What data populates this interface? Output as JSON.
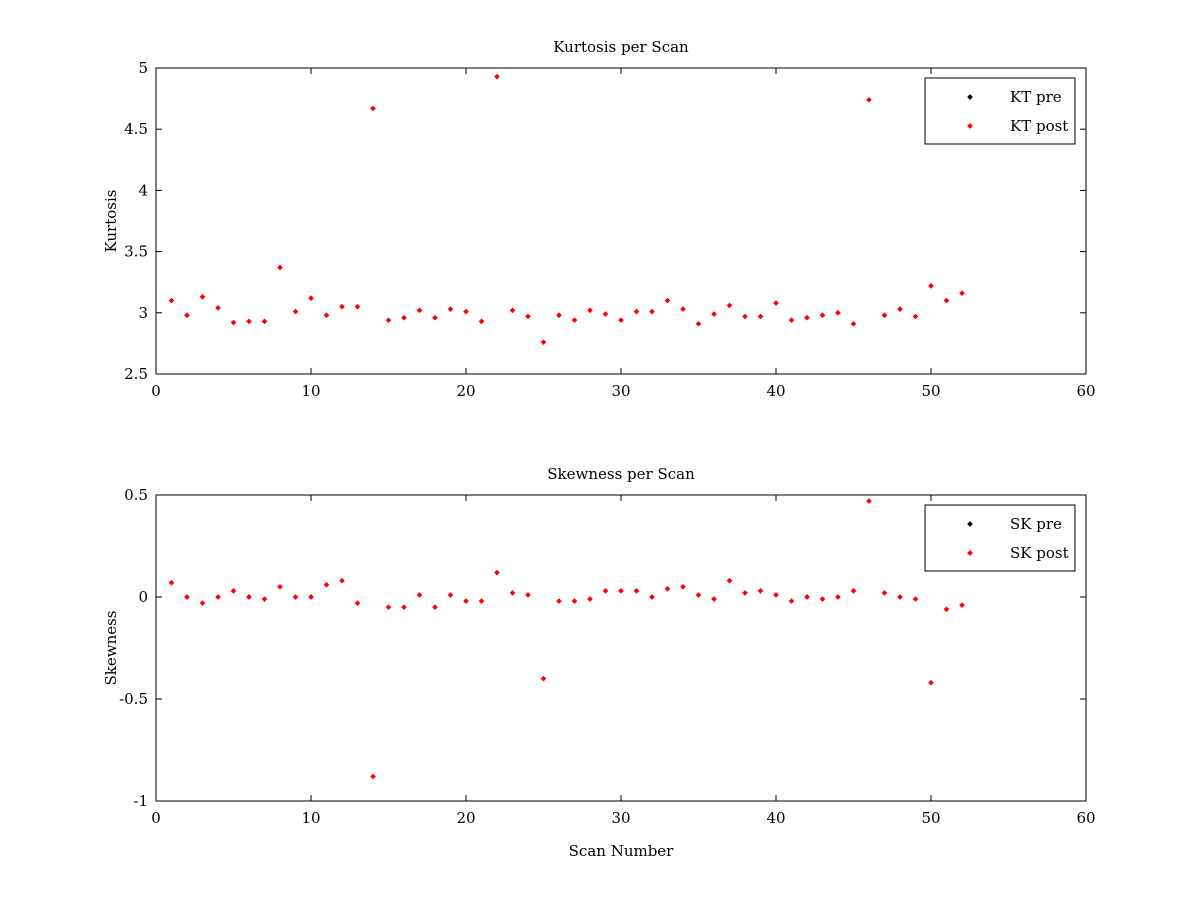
{
  "chart_data": [
    {
      "type": "scatter",
      "title": "Kurtosis per Scan",
      "xlabel": "",
      "ylabel": "Kurtosis",
      "xlim": [
        0,
        60
      ],
      "ylim": [
        2.5,
        5
      ],
      "xticks": [
        "0",
        "10",
        "20",
        "30",
        "40",
        "50",
        "60"
      ],
      "yticks": [
        "2.5",
        "3",
        "3.5",
        "4",
        "4.5",
        "5"
      ],
      "legend_position": "top-right",
      "grid": false,
      "series": [
        {
          "name": "KT pre",
          "color": "#000000",
          "x": [],
          "y": []
        },
        {
          "name": "KT post",
          "color": "#ff0000",
          "x": [
            1,
            2,
            3,
            4,
            5,
            6,
            7,
            8,
            9,
            10,
            11,
            12,
            13,
            14,
            15,
            16,
            17,
            18,
            19,
            20,
            21,
            22,
            23,
            24,
            25,
            26,
            27,
            28,
            29,
            30,
            31,
            32,
            33,
            34,
            35,
            36,
            37,
            38,
            39,
            40,
            41,
            42,
            43,
            44,
            45,
            46,
            47,
            48,
            49,
            50,
            51,
            52
          ],
          "y": [
            3.1,
            2.98,
            3.13,
            3.04,
            2.92,
            2.93,
            2.93,
            3.37,
            3.01,
            3.12,
            2.98,
            3.05,
            3.05,
            4.67,
            2.94,
            2.96,
            3.02,
            2.96,
            3.03,
            3.01,
            2.93,
            4.93,
            3.02,
            2.97,
            2.76,
            2.98,
            2.94,
            3.02,
            2.99,
            2.94,
            3.01,
            3.01,
            3.1,
            3.03,
            2.91,
            2.99,
            3.06,
            2.97,
            2.97,
            3.08,
            2.94,
            2.96,
            2.98,
            3.0,
            2.91,
            4.74,
            2.98,
            3.03,
            2.97,
            3.22,
            3.1,
            3.16
          ]
        }
      ]
    },
    {
      "type": "scatter",
      "title": "Skewness per Scan",
      "xlabel": "Scan Number",
      "ylabel": "Skewness",
      "xlim": [
        0,
        60
      ],
      "ylim": [
        -1,
        0.5
      ],
      "xticks": [
        "0",
        "10",
        "20",
        "30",
        "40",
        "50",
        "60"
      ],
      "yticks": [
        "-1",
        "-0.5",
        "0",
        "0.5"
      ],
      "legend_position": "top-right",
      "grid": false,
      "series": [
        {
          "name": "SK pre",
          "color": "#000000",
          "x": [],
          "y": []
        },
        {
          "name": "SK post",
          "color": "#ff0000",
          "x": [
            1,
            2,
            3,
            4,
            5,
            6,
            7,
            8,
            9,
            10,
            11,
            12,
            13,
            14,
            15,
            16,
            17,
            18,
            19,
            20,
            21,
            22,
            23,
            24,
            25,
            26,
            27,
            28,
            29,
            30,
            31,
            32,
            33,
            34,
            35,
            36,
            37,
            38,
            39,
            40,
            41,
            42,
            43,
            44,
            45,
            46,
            47,
            48,
            49,
            50,
            51,
            52
          ],
          "y": [
            0.07,
            0.0,
            -0.03,
            0.0,
            0.03,
            0.0,
            -0.01,
            0.05,
            0.0,
            0.0,
            0.06,
            0.08,
            -0.03,
            -0.88,
            -0.05,
            -0.05,
            0.01,
            -0.05,
            0.01,
            -0.02,
            -0.02,
            0.12,
            0.02,
            0.01,
            -0.4,
            -0.02,
            -0.02,
            -0.01,
            0.03,
            0.03,
            0.03,
            0.0,
            0.04,
            0.05,
            0.01,
            -0.01,
            0.08,
            0.02,
            0.03,
            0.01,
            -0.02,
            0.0,
            -0.01,
            0.0,
            0.03,
            0.47,
            0.02,
            0.0,
            -0.01,
            -0.42,
            -0.06,
            -0.04
          ]
        }
      ]
    }
  ]
}
